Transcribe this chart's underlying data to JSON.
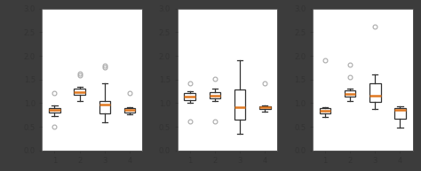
{
  "ylim": [
    0.0,
    3.0
  ],
  "yticks": [
    0.0,
    0.5,
    1.0,
    1.5,
    2.0,
    2.5,
    3.0
  ],
  "xticks": [
    1,
    2,
    3,
    4
  ],
  "median_color": "#e07820",
  "box_facecolor": "white",
  "box_edgecolor": "#333333",
  "whisker_color": "#333333",
  "cap_color": "#333333",
  "flier_edgecolor": "#aaaaaa",
  "background_color": "#3c3c3c",
  "axes_facecolor": "#ffffff",
  "figsize": [
    4.74,
    1.93
  ],
  "dpi": 100,
  "subplot1": {
    "data": [
      [
        0.73,
        0.78,
        0.8,
        0.82,
        0.85,
        0.87,
        0.88,
        0.9,
        0.92,
        0.95,
        0.5,
        1.22
      ],
      [
        1.05,
        1.1,
        1.15,
        1.18,
        1.2,
        1.22,
        1.25,
        1.28,
        1.3,
        1.35,
        1.58,
        1.63
      ],
      [
        0.68,
        0.72,
        0.75,
        0.88,
        0.92,
        0.95,
        0.98,
        1.0,
        1.02,
        1.05,
        1.75,
        1.8,
        1.42,
        0.6
      ],
      [
        0.76,
        0.79,
        0.8,
        0.82,
        0.84,
        0.85,
        0.86,
        0.88,
        0.9,
        0.92,
        1.22
      ]
    ]
  },
  "subplot2": {
    "data": [
      [
        1.0,
        1.05,
        1.08,
        1.1,
        1.12,
        1.15,
        1.18,
        1.2,
        1.22,
        1.25,
        0.62,
        1.42
      ],
      [
        1.05,
        1.08,
        1.1,
        1.12,
        1.15,
        1.18,
        1.2,
        1.22,
        1.25,
        1.3,
        0.62,
        1.52
      ],
      [
        0.42,
        0.55,
        0.65,
        0.72,
        0.82,
        0.92,
        1.05,
        1.18,
        1.28,
        1.38,
        1.9,
        0.36,
        1.38
      ],
      [
        0.82,
        0.84,
        0.86,
        0.88,
        0.9,
        0.91,
        0.92,
        0.93,
        0.94,
        0.95,
        1.42
      ]
    ]
  },
  "subplot3": {
    "data": [
      [
        0.7,
        0.75,
        0.78,
        0.8,
        0.82,
        0.84,
        0.86,
        0.88,
        0.9,
        0.92,
        1.9
      ],
      [
        1.05,
        1.08,
        1.12,
        1.15,
        1.18,
        1.2,
        1.22,
        1.25,
        1.3,
        1.55,
        1.82
      ],
      [
        0.88,
        0.95,
        1.0,
        1.05,
        1.1,
        1.15,
        1.2,
        1.35,
        1.5,
        1.6,
        2.62
      ],
      [
        0.82,
        0.84,
        0.86,
        0.88,
        0.9,
        0.91,
        0.92,
        0.93,
        0.5,
        0.48,
        0.54
      ]
    ]
  }
}
